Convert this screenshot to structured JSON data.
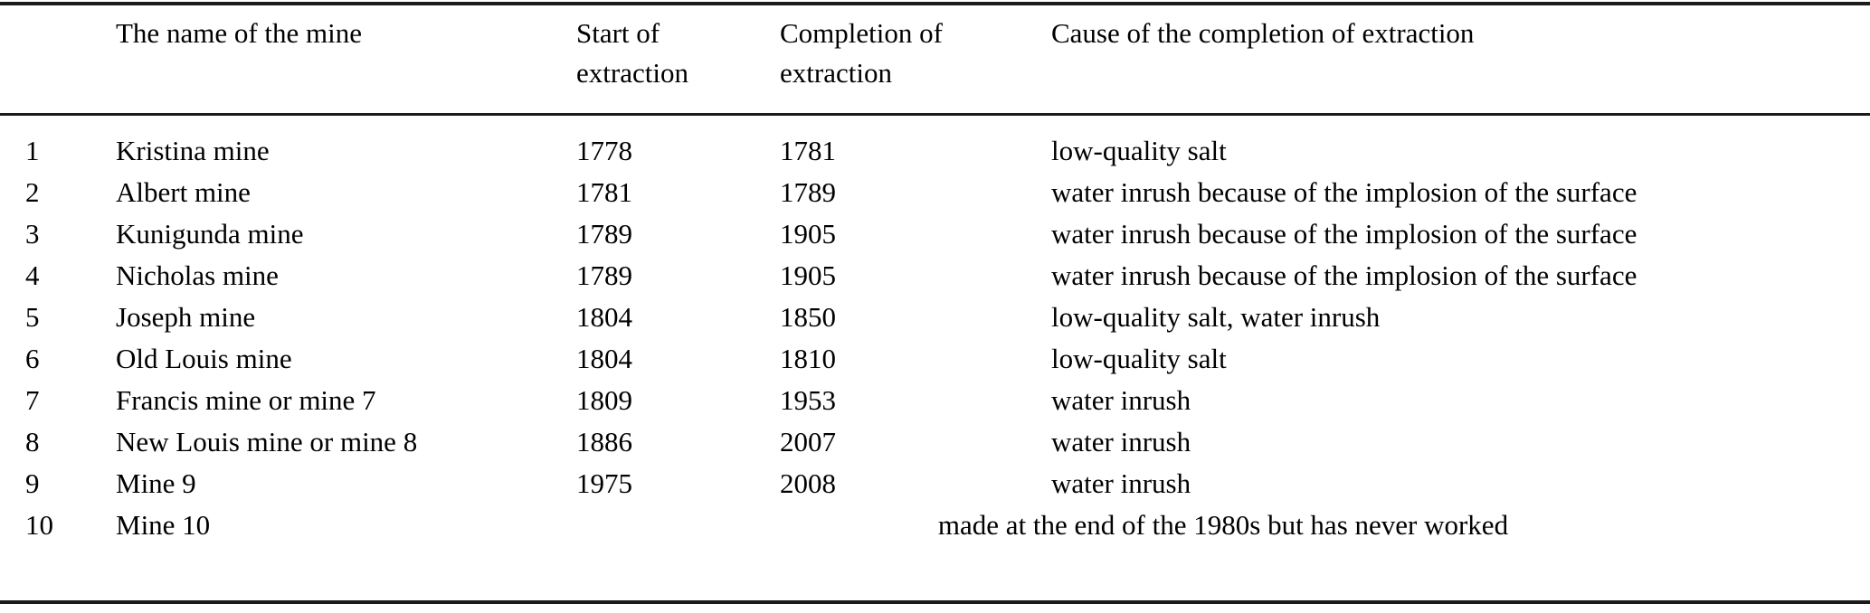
{
  "colors": {
    "background": "#ffffff",
    "text": "#000000",
    "rule": "#1b1b1b"
  },
  "table": {
    "columns": [
      {
        "key": "num",
        "label": ""
      },
      {
        "key": "name",
        "label": "The name of the mine"
      },
      {
        "key": "start",
        "label": "Start of extraction"
      },
      {
        "key": "end",
        "label": "Completion of extraction"
      },
      {
        "key": "cause",
        "label": "Cause of the completion of extraction"
      }
    ],
    "rows": [
      {
        "num": "1",
        "name": "Kristina mine",
        "start": "1778",
        "end": "1781",
        "cause": "low-quality salt"
      },
      {
        "num": "2",
        "name": "Albert mine",
        "start": "1781",
        "end": "1789",
        "cause": "water inrush because of the implosion of the surface"
      },
      {
        "num": "3",
        "name": "Kunigunda mine",
        "start": "1789",
        "end": "1905",
        "cause": "water inrush because of the implosion of the surface"
      },
      {
        "num": "4",
        "name": "Nicholas mine",
        "start": "1789",
        "end": "1905",
        "cause": "water inrush because of the implosion of the surface"
      },
      {
        "num": "5",
        "name": "Joseph mine",
        "start": "1804",
        "end": "1850",
        "cause": "low-quality salt, water inrush"
      },
      {
        "num": "6",
        "name": "Old Louis mine",
        "start": "1804",
        "end": "1810",
        "cause": "low-quality salt"
      },
      {
        "num": "7",
        "name": "Francis mine or mine 7",
        "start": "1809",
        "end": "1953",
        "cause": "water inrush"
      },
      {
        "num": "8",
        "name": "New Louis mine or mine 8",
        "start": "1886",
        "end": "2007",
        "cause": "water inrush"
      },
      {
        "num": "9",
        "name": "Mine 9",
        "start": "1975",
        "end": "2008",
        "cause": "water inrush"
      },
      {
        "num": "10",
        "name": "Mine 10",
        "merged": "made at the end of the 1980s but has never worked"
      }
    ]
  }
}
